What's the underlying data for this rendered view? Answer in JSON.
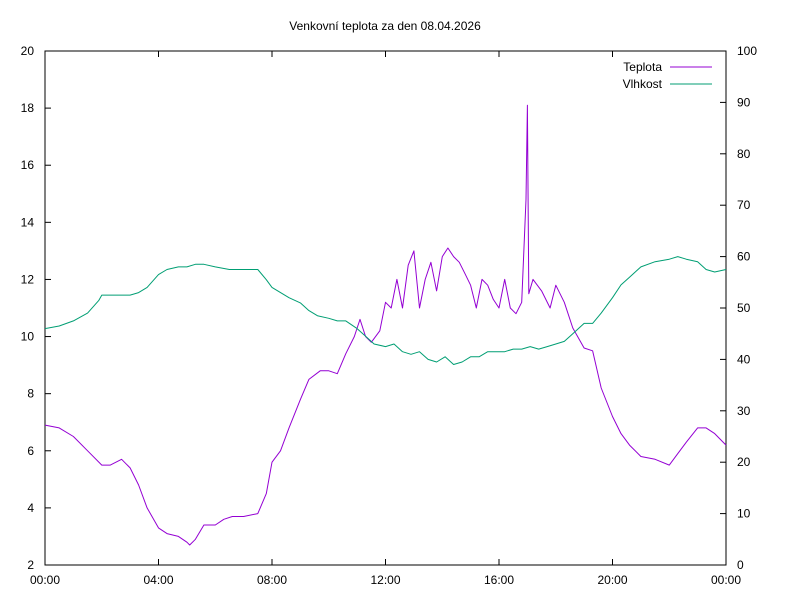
{
  "chart_data": {
    "type": "line",
    "title": "Venkovní teplota za den 08.04.2026",
    "x_tick_labels": [
      "00:00",
      "04:00",
      "08:00",
      "12:00",
      "16:00",
      "20:00",
      "00:00"
    ],
    "x_tick_hours": [
      0,
      4,
      8,
      12,
      16,
      20,
      24
    ],
    "xlim": [
      0,
      24
    ],
    "y_left": {
      "ylim": [
        2,
        20
      ],
      "ticks": [
        2,
        4,
        6,
        8,
        10,
        12,
        14,
        16,
        18,
        20
      ],
      "tick_labels": [
        "2",
        "4",
        "6",
        "8",
        "10",
        "12",
        "14",
        "16",
        "18",
        "20"
      ]
    },
    "y_right": {
      "ylim": [
        0,
        100
      ],
      "ticks": [
        0,
        10,
        20,
        30,
        40,
        50,
        60,
        70,
        80,
        90,
        100
      ],
      "tick_labels": [
        "0",
        "10",
        "20",
        "30",
        "40",
        "50",
        "60",
        "70",
        "80",
        "90",
        "100"
      ]
    },
    "legend": {
      "placement": "top-right"
    },
    "grid": false,
    "series": [
      {
        "name": "Teplota",
        "axis": "left",
        "color": "#9400d3",
        "x": [
          0,
          0.5,
          1,
          1.5,
          2,
          2.3,
          2.7,
          3,
          3.3,
          3.6,
          4,
          4.3,
          4.7,
          5,
          5.1,
          5.3,
          5.6,
          6,
          6.3,
          6.6,
          7,
          7.5,
          7.8,
          8,
          8.3,
          8.6,
          9,
          9.3,
          9.7,
          10,
          10.3,
          10.6,
          10.9,
          11.1,
          11.3,
          11.5,
          11.8,
          12,
          12.2,
          12.4,
          12.6,
          12.8,
          13,
          13.2,
          13.4,
          13.6,
          13.8,
          14,
          14.2,
          14.4,
          14.6,
          14.8,
          15,
          15.2,
          15.4,
          15.6,
          15.8,
          16,
          16.2,
          16.4,
          16.6,
          16.8,
          16.95,
          17.0,
          17.05,
          17.2,
          17.5,
          17.8,
          18,
          18.3,
          18.6,
          19,
          19.3,
          19.6,
          20,
          20.3,
          20.6,
          21,
          21.5,
          22,
          22.3,
          22.6,
          23,
          23.3,
          23.6,
          24
        ],
        "values": [
          6.9,
          6.8,
          6.5,
          6.0,
          5.5,
          5.5,
          5.7,
          5.4,
          4.8,
          4.0,
          3.3,
          3.1,
          3.0,
          2.8,
          2.7,
          2.9,
          3.4,
          3.4,
          3.6,
          3.7,
          3.7,
          3.8,
          4.5,
          5.6,
          6.0,
          6.8,
          7.8,
          8.5,
          8.8,
          8.8,
          8.7,
          9.4,
          10.0,
          10.6,
          10.0,
          9.8,
          10.2,
          11.2,
          11.0,
          12.0,
          11.0,
          12.5,
          13.0,
          11.0,
          12.0,
          12.6,
          11.6,
          12.8,
          13.1,
          12.8,
          12.6,
          12.2,
          11.8,
          11.0,
          12.0,
          11.8,
          11.3,
          11.0,
          12.0,
          11.0,
          10.8,
          11.2,
          14.8,
          18.1,
          11.5,
          12.0,
          11.6,
          11.0,
          11.8,
          11.2,
          10.3,
          9.6,
          9.5,
          8.2,
          7.2,
          6.6,
          6.2,
          5.8,
          5.7,
          5.5,
          5.9,
          6.3,
          6.8,
          6.8,
          6.6,
          6.2
        ]
      },
      {
        "name": "Vlhkost",
        "axis": "right",
        "color": "#009e73",
        "x": [
          0,
          0.5,
          1,
          1.5,
          1.9,
          2,
          2.5,
          3,
          3.3,
          3.6,
          4,
          4.3,
          4.7,
          5,
          5.3,
          5.6,
          6,
          6.5,
          7,
          7.5,
          7.8,
          8,
          8.3,
          8.6,
          9,
          9.3,
          9.6,
          10,
          10.3,
          10.6,
          11,
          11.3,
          11.6,
          12,
          12.3,
          12.6,
          12.9,
          13.2,
          13.5,
          13.8,
          14.1,
          14.4,
          14.7,
          15,
          15.3,
          15.6,
          15.9,
          16.2,
          16.5,
          16.8,
          17.1,
          17.4,
          17.7,
          18,
          18.3,
          18.6,
          19,
          19.3,
          19.6,
          20,
          20.3,
          20.6,
          21,
          21.5,
          22,
          22.3,
          22.6,
          23,
          23.3,
          23.6,
          24
        ],
        "values": [
          46,
          46.5,
          47.5,
          49,
          51.5,
          52.5,
          52.5,
          52.5,
          53,
          54,
          56.5,
          57.5,
          58,
          58,
          58.5,
          58.5,
          58,
          57.5,
          57.5,
          57.5,
          55.5,
          54,
          53,
          52,
          51,
          49.5,
          48.5,
          48,
          47.5,
          47.5,
          46,
          44.5,
          43,
          42.5,
          43,
          41.5,
          41,
          41.5,
          40,
          39.5,
          40.5,
          39,
          39.5,
          40.5,
          40.5,
          41.5,
          41.5,
          41.5,
          42,
          42,
          42.5,
          42,
          42.5,
          43,
          43.5,
          45,
          47,
          47,
          49,
          52,
          54.5,
          56,
          58,
          59,
          59.5,
          60,
          59.5,
          59,
          57.5,
          57,
          57.5
        ]
      }
    ]
  }
}
